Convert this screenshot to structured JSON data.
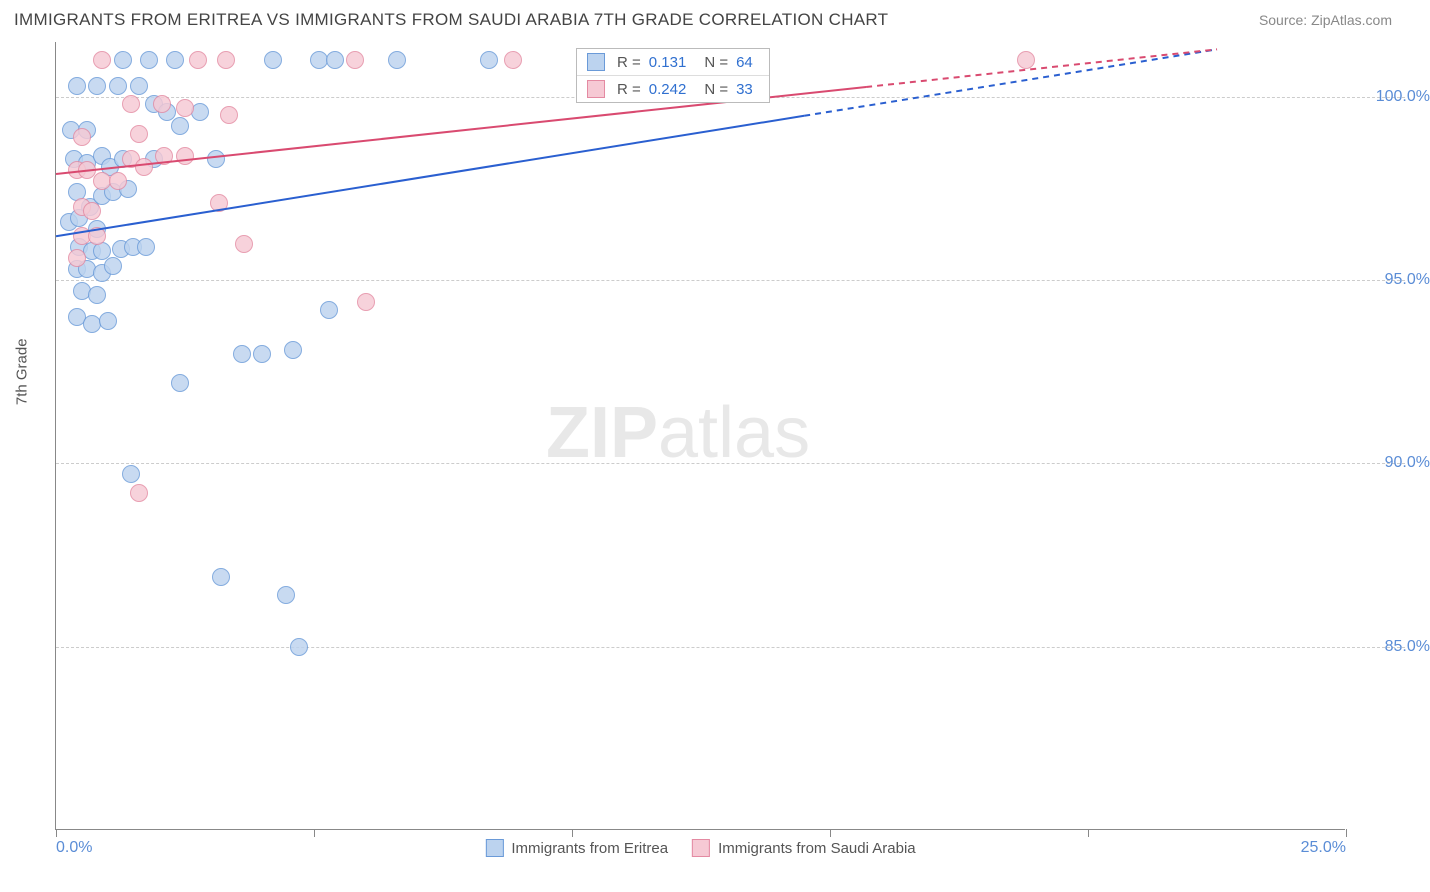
{
  "title": "IMMIGRANTS FROM ERITREA VS IMMIGRANTS FROM SAUDI ARABIA 7TH GRADE CORRELATION CHART",
  "source": "Source: ZipAtlas.com",
  "y_axis_title": "7th Grade",
  "watermark_bold": "ZIP",
  "watermark_light": "atlas",
  "colors": {
    "series_a_fill": "#bcd3ef",
    "series_a_stroke": "#6a9ad8",
    "series_b_fill": "#f6c9d4",
    "series_b_stroke": "#e48aa2",
    "line_a": "#2a5fd0",
    "line_b": "#d94a70",
    "axis_text": "#5b8dd6",
    "grid": "#cccccc"
  },
  "chart": {
    "type": "scatter",
    "xlim": [
      0,
      25
    ],
    "ylim": [
      80,
      101.5
    ],
    "y_ticks": [
      85,
      90,
      95,
      100
    ],
    "y_tick_labels": [
      "85.0%",
      "90.0%",
      "95.0%",
      "100.0%"
    ],
    "x_ticks": [
      0,
      5,
      10,
      15,
      20,
      25
    ],
    "x_tick_labels": [
      "0.0%",
      "",
      "",
      "",
      "",
      "25.0%"
    ],
    "marker_size": 18,
    "grid_dash": true
  },
  "series": [
    {
      "name": "Immigrants from Eritrea",
      "color_key": "a",
      "r_label": "R =",
      "r_value": "0.131",
      "n_label": "N =",
      "n_value": "64",
      "trend": {
        "x1": 0,
        "y1": 96.2,
        "x2": 22.5,
        "y2": 101.3,
        "dash_from_x": 14.5
      },
      "points": [
        [
          1.3,
          101
        ],
        [
          1.8,
          101
        ],
        [
          2.3,
          101
        ],
        [
          4.2,
          101
        ],
        [
          5.1,
          101
        ],
        [
          5.4,
          101
        ],
        [
          6.6,
          101
        ],
        [
          8.4,
          101
        ],
        [
          0.4,
          100.3
        ],
        [
          0.8,
          100.3
        ],
        [
          1.2,
          100.3
        ],
        [
          1.6,
          100.3
        ],
        [
          1.9,
          99.8
        ],
        [
          2.15,
          99.6
        ],
        [
          2.4,
          99.2
        ],
        [
          2.8,
          99.6
        ],
        [
          0.3,
          99.1
        ],
        [
          0.6,
          99.1
        ],
        [
          0.35,
          98.3
        ],
        [
          0.6,
          98.2
        ],
        [
          0.9,
          98.4
        ],
        [
          1.05,
          98.1
        ],
        [
          1.3,
          98.3
        ],
        [
          1.9,
          98.3
        ],
        [
          3.1,
          98.3
        ],
        [
          0.4,
          97.4
        ],
        [
          0.65,
          97.0
        ],
        [
          0.9,
          97.3
        ],
        [
          1.1,
          97.4
        ],
        [
          1.4,
          97.5
        ],
        [
          0.25,
          96.6
        ],
        [
          0.45,
          96.7
        ],
        [
          0.8,
          96.4
        ],
        [
          0.45,
          95.9
        ],
        [
          0.7,
          95.8
        ],
        [
          0.9,
          95.8
        ],
        [
          1.25,
          95.85
        ],
        [
          1.5,
          95.9
        ],
        [
          1.75,
          95.9
        ],
        [
          0.4,
          95.3
        ],
        [
          0.6,
          95.3
        ],
        [
          0.9,
          95.2
        ],
        [
          1.1,
          95.4
        ],
        [
          0.5,
          94.7
        ],
        [
          0.8,
          94.6
        ],
        [
          5.3,
          94.2
        ],
        [
          0.4,
          94.0
        ],
        [
          0.7,
          93.8
        ],
        [
          1.0,
          93.9
        ],
        [
          3.6,
          93.0
        ],
        [
          4.0,
          93.0
        ],
        [
          4.6,
          93.1
        ],
        [
          2.4,
          92.2
        ],
        [
          1.45,
          89.7
        ],
        [
          3.2,
          86.9
        ],
        [
          4.45,
          86.4
        ],
        [
          4.7,
          85.0
        ]
      ]
    },
    {
      "name": "Immigrants from Saudi Arabia",
      "color_key": "b",
      "r_label": "R =",
      "r_value": "0.242",
      "n_label": "N =",
      "n_value": "33",
      "trend": {
        "x1": 0,
        "y1": 97.9,
        "x2": 22.5,
        "y2": 101.3,
        "dash_from_x": 15.7
      },
      "points": [
        [
          0.9,
          101
        ],
        [
          2.75,
          101
        ],
        [
          3.3,
          101
        ],
        [
          5.8,
          101
        ],
        [
          8.85,
          101
        ],
        [
          18.8,
          101
        ],
        [
          1.45,
          99.8
        ],
        [
          2.05,
          99.8
        ],
        [
          2.5,
          99.7
        ],
        [
          3.35,
          99.5
        ],
        [
          0.5,
          98.9
        ],
        [
          1.6,
          99.0
        ],
        [
          1.45,
          98.3
        ],
        [
          1.7,
          98.1
        ],
        [
          2.1,
          98.4
        ],
        [
          2.5,
          98.4
        ],
        [
          0.9,
          97.7
        ],
        [
          1.2,
          97.7
        ],
        [
          0.4,
          98.0
        ],
        [
          0.6,
          98.0
        ],
        [
          0.5,
          97.0
        ],
        [
          0.7,
          96.9
        ],
        [
          3.15,
          97.1
        ],
        [
          0.5,
          96.2
        ],
        [
          0.8,
          96.2
        ],
        [
          3.65,
          96.0
        ],
        [
          0.4,
          95.6
        ],
        [
          6.0,
          94.4
        ],
        [
          1.6,
          89.2
        ]
      ]
    }
  ]
}
